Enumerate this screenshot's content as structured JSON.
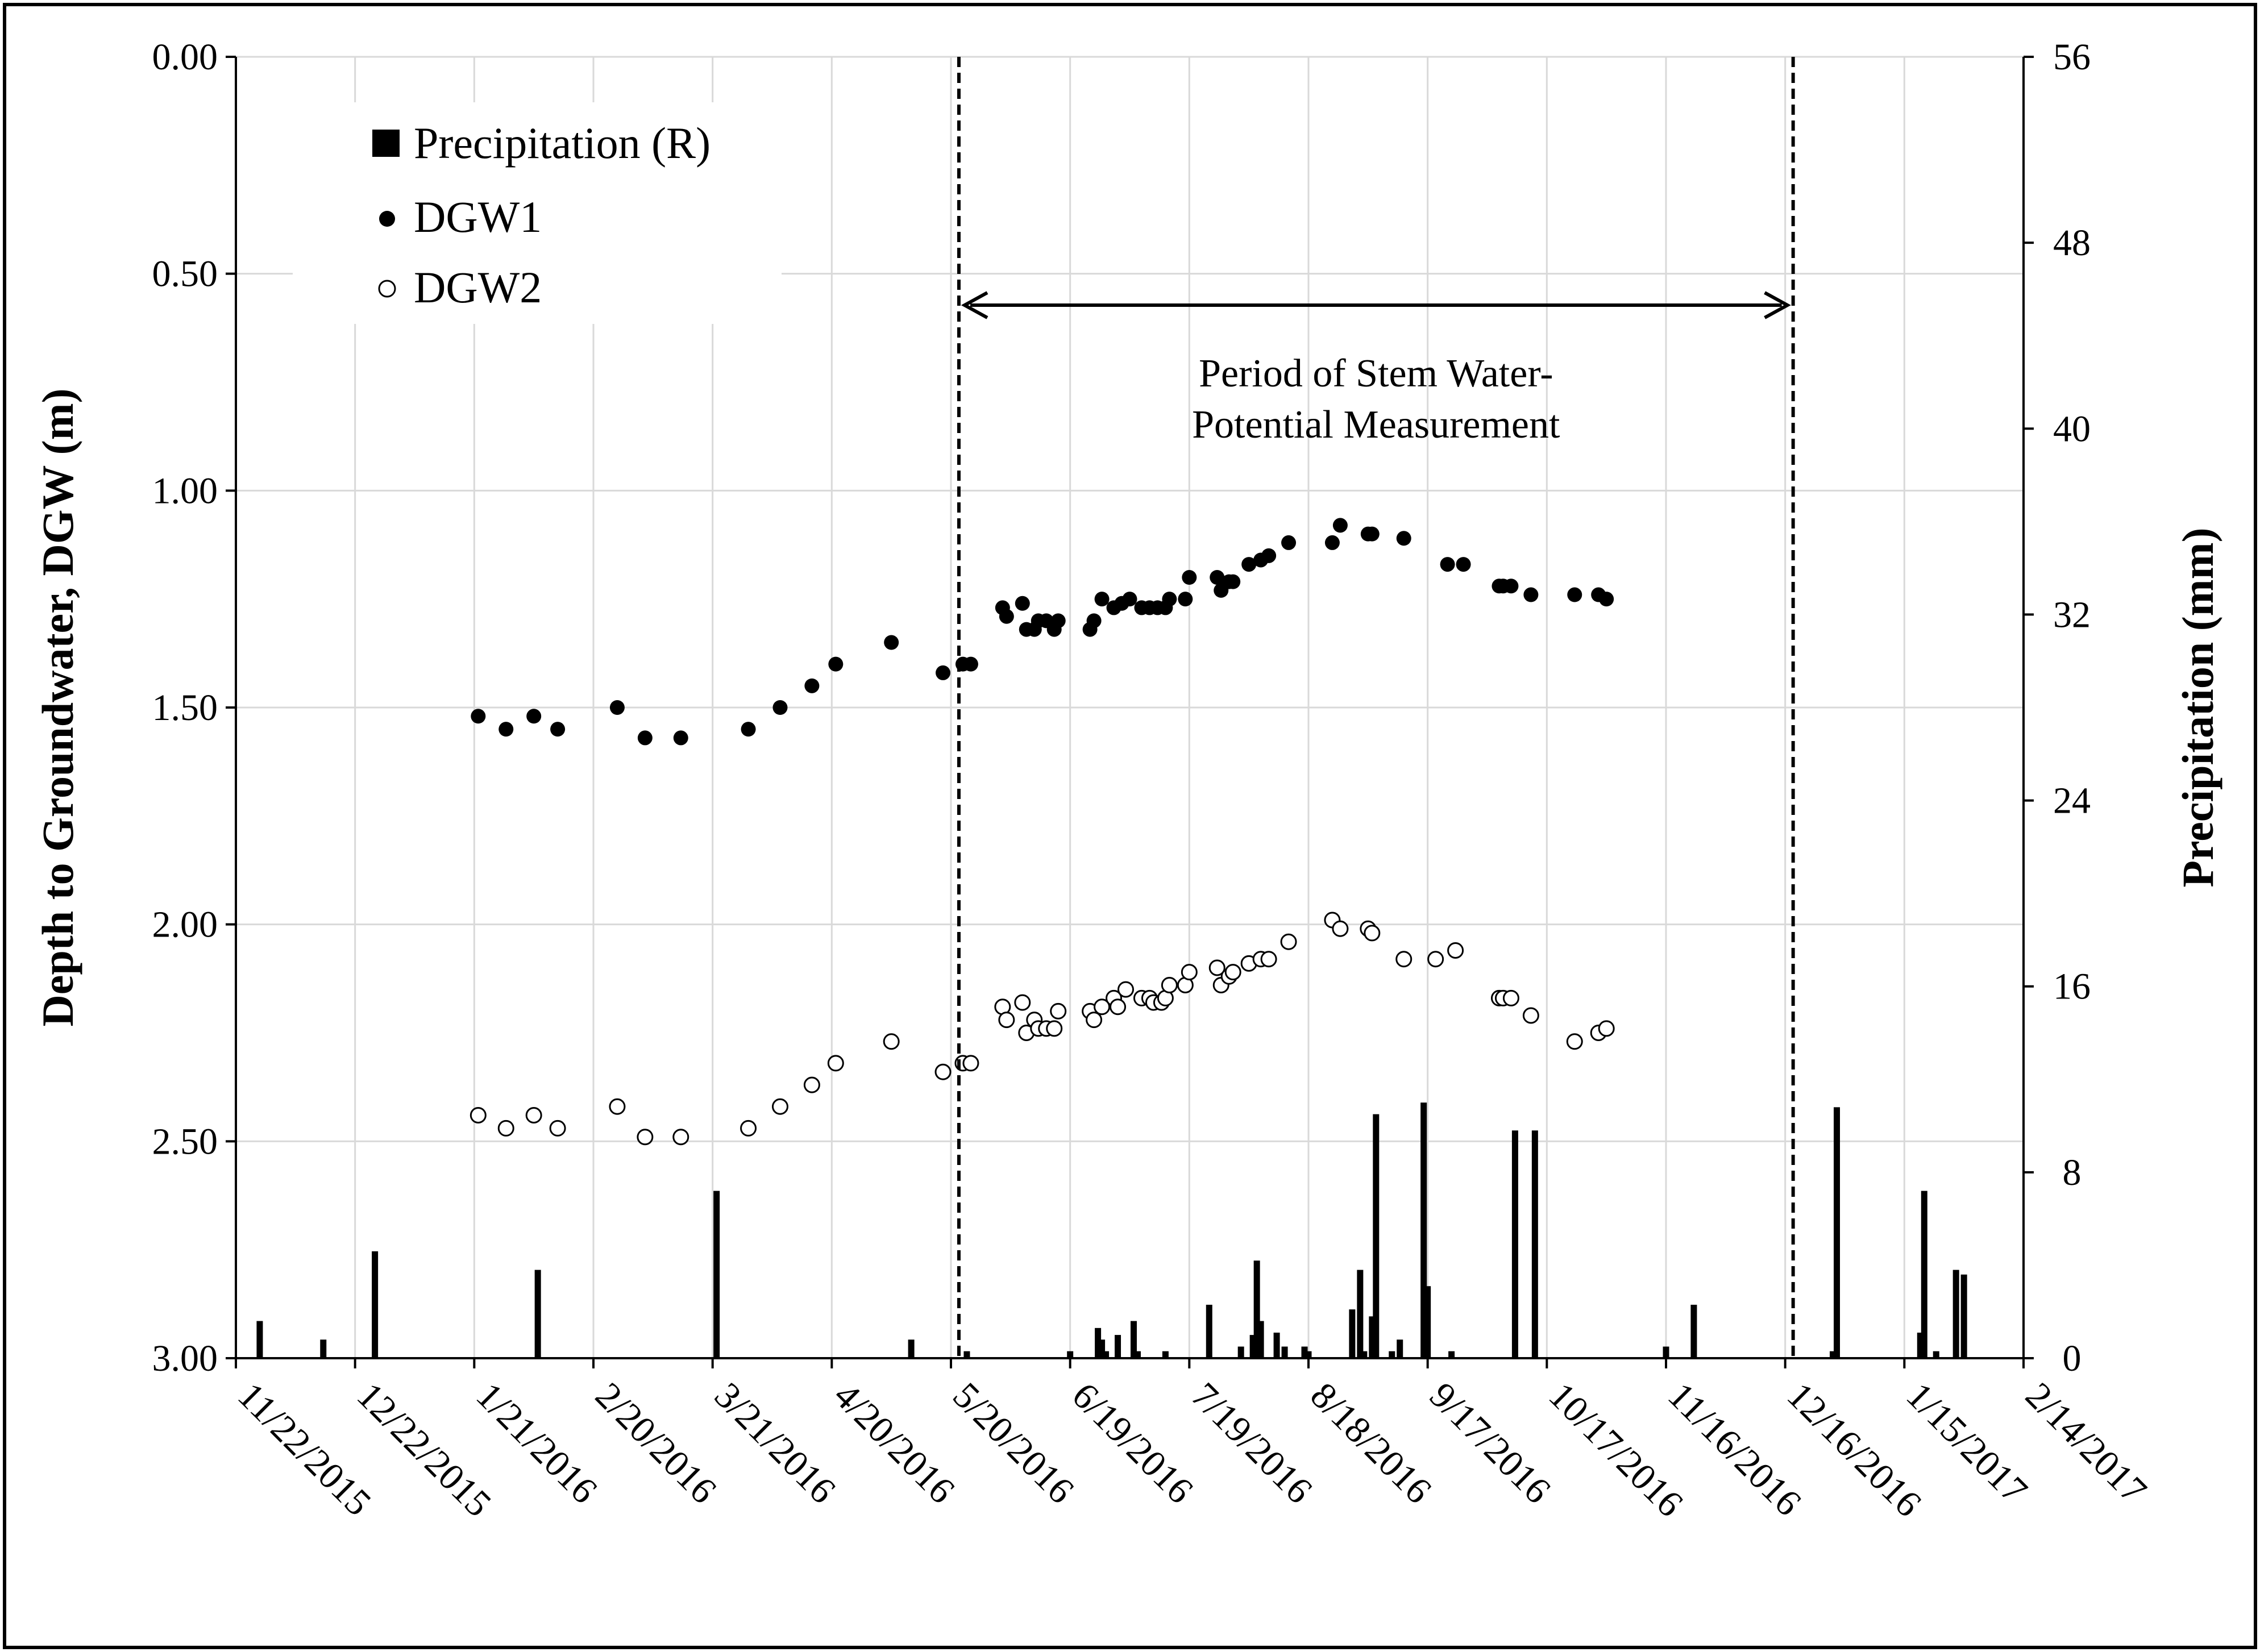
{
  "chart_data": {
    "type": "scatter",
    "title": "",
    "xlabel": "",
    "ylabel": "Depth to Groundwater, DGW (m)",
    "y2label": "Precipitation (mm)",
    "colors": {
      "frame": "#000000",
      "grid": "#d9d9d9",
      "marker": "#000000"
    },
    "x_range_days": [
      0,
      450
    ],
    "x_ticks": [
      {
        "day": 0,
        "label": "11/22/2015"
      },
      {
        "day": 30,
        "label": "12/22/2015"
      },
      {
        "day": 60,
        "label": "1/21/2016"
      },
      {
        "day": 90,
        "label": "2/20/2016"
      },
      {
        "day": 120,
        "label": "3/21/2016"
      },
      {
        "day": 150,
        "label": "4/20/2016"
      },
      {
        "day": 180,
        "label": "5/20/2016"
      },
      {
        "day": 210,
        "label": "6/19/2016"
      },
      {
        "day": 240,
        "label": "7/19/2016"
      },
      {
        "day": 270,
        "label": "8/18/2016"
      },
      {
        "day": 300,
        "label": "9/17/2016"
      },
      {
        "day": 330,
        "label": "10/17/2016"
      },
      {
        "day": 360,
        "label": "11/16/2016"
      },
      {
        "day": 390,
        "label": "12/16/2016"
      },
      {
        "day": 420,
        "label": "1/15/2017"
      },
      {
        "day": 450,
        "label": "2/14/2017"
      }
    ],
    "y_left": {
      "min": 0.0,
      "max": 3.0,
      "inverted": true,
      "ticks": [
        "0.00",
        "0.50",
        "1.00",
        "1.50",
        "2.00",
        "2.50",
        "3.00"
      ]
    },
    "y_right": {
      "min": 0,
      "max": 56,
      "ticks": [
        "0",
        "8",
        "16",
        "24",
        "32",
        "40",
        "48",
        "56"
      ]
    },
    "legend": {
      "position": "top-left",
      "entries": [
        "Precipitation (R)",
        "DGW1",
        "DGW2"
      ]
    },
    "annotation": {
      "line1": "Period of Stem Water-",
      "line2": "Potential Measurement",
      "start_day": 182,
      "end_day": 392
    },
    "series": [
      {
        "name": "DGW1",
        "marker": "filled-circle",
        "points": [
          [
            61,
            1.52
          ],
          [
            68,
            1.55
          ],
          [
            75,
            1.52
          ],
          [
            81,
            1.55
          ],
          [
            96,
            1.5
          ],
          [
            103,
            1.57
          ],
          [
            112,
            1.57
          ],
          [
            129,
            1.55
          ],
          [
            137,
            1.5
          ],
          [
            145,
            1.45
          ],
          [
            151,
            1.4
          ],
          [
            165,
            1.35
          ],
          [
            178,
            1.42
          ],
          [
            183,
            1.4
          ],
          [
            185,
            1.4
          ],
          [
            193,
            1.27
          ],
          [
            194,
            1.29
          ],
          [
            198,
            1.26
          ],
          [
            199,
            1.32
          ],
          [
            201,
            1.32
          ],
          [
            202,
            1.3
          ],
          [
            204,
            1.3
          ],
          [
            206,
            1.32
          ],
          [
            207,
            1.3
          ],
          [
            215,
            1.32
          ],
          [
            216,
            1.3
          ],
          [
            218,
            1.25
          ],
          [
            221,
            1.27
          ],
          [
            223,
            1.26
          ],
          [
            225,
            1.25
          ],
          [
            228,
            1.27
          ],
          [
            230,
            1.27
          ],
          [
            232,
            1.27
          ],
          [
            234,
            1.27
          ],
          [
            235,
            1.25
          ],
          [
            239,
            1.25
          ],
          [
            240,
            1.2
          ],
          [
            247,
            1.2
          ],
          [
            248,
            1.23
          ],
          [
            250,
            1.21
          ],
          [
            251,
            1.21
          ],
          [
            255,
            1.17
          ],
          [
            258,
            1.16
          ],
          [
            260,
            1.15
          ],
          [
            265,
            1.12
          ],
          [
            276,
            1.12
          ],
          [
            278,
            1.08
          ],
          [
            285,
            1.1
          ],
          [
            286,
            1.1
          ],
          [
            294,
            1.11
          ],
          [
            305,
            1.17
          ],
          [
            309,
            1.17
          ],
          [
            318,
            1.22
          ],
          [
            319,
            1.22
          ],
          [
            321,
            1.22
          ],
          [
            326,
            1.24
          ],
          [
            337,
            1.24
          ],
          [
            343,
            1.24
          ],
          [
            345,
            1.25
          ]
        ]
      },
      {
        "name": "DGW2",
        "marker": "open-circle",
        "points": [
          [
            61,
            2.44
          ],
          [
            68,
            2.47
          ],
          [
            75,
            2.44
          ],
          [
            81,
            2.47
          ],
          [
            96,
            2.42
          ],
          [
            103,
            2.49
          ],
          [
            112,
            2.49
          ],
          [
            129,
            2.47
          ],
          [
            137,
            2.42
          ],
          [
            145,
            2.37
          ],
          [
            151,
            2.32
          ],
          [
            165,
            2.27
          ],
          [
            178,
            2.34
          ],
          [
            183,
            2.32
          ],
          [
            185,
            2.32
          ],
          [
            193,
            2.19
          ],
          [
            194,
            2.22
          ],
          [
            198,
            2.18
          ],
          [
            199,
            2.25
          ],
          [
            201,
            2.22
          ],
          [
            202,
            2.24
          ],
          [
            204,
            2.24
          ],
          [
            206,
            2.24
          ],
          [
            207,
            2.2
          ],
          [
            215,
            2.2
          ],
          [
            216,
            2.22
          ],
          [
            218,
            2.19
          ],
          [
            221,
            2.17
          ],
          [
            222,
            2.19
          ],
          [
            224,
            2.15
          ],
          [
            228,
            2.17
          ],
          [
            230,
            2.17
          ],
          [
            231,
            2.18
          ],
          [
            233,
            2.18
          ],
          [
            234,
            2.17
          ],
          [
            235,
            2.14
          ],
          [
            239,
            2.14
          ],
          [
            240,
            2.11
          ],
          [
            247,
            2.1
          ],
          [
            248,
            2.14
          ],
          [
            250,
            2.12
          ],
          [
            251,
            2.11
          ],
          [
            255,
            2.09
          ],
          [
            258,
            2.08
          ],
          [
            260,
            2.08
          ],
          [
            265,
            2.04
          ],
          [
            276,
            1.99
          ],
          [
            278,
            2.01
          ],
          [
            285,
            2.01
          ],
          [
            286,
            2.02
          ],
          [
            294,
            2.08
          ],
          [
            302,
            2.08
          ],
          [
            307,
            2.06
          ],
          [
            318,
            2.17
          ],
          [
            319,
            2.17
          ],
          [
            321,
            2.17
          ],
          [
            326,
            2.21
          ],
          [
            337,
            2.27
          ],
          [
            343,
            2.25
          ],
          [
            345,
            2.24
          ]
        ]
      },
      {
        "name": "Precipitation (R)",
        "marker": "bar",
        "axis": "right",
        "points": [
          [
            6,
            1.6
          ],
          [
            22,
            0.8
          ],
          [
            35,
            4.6
          ],
          [
            76,
            3.8
          ],
          [
            121,
            7.2
          ],
          [
            170,
            0.8
          ],
          [
            184,
            0.3
          ],
          [
            210,
            0.3
          ],
          [
            217,
            1.3
          ],
          [
            218,
            0.8
          ],
          [
            219,
            0.3
          ],
          [
            222,
            1.0
          ],
          [
            226,
            1.6
          ],
          [
            227,
            0.3
          ],
          [
            234,
            0.3
          ],
          [
            245,
            2.3
          ],
          [
            253,
            0.5
          ],
          [
            257,
            4.2
          ],
          [
            256,
            1.0
          ],
          [
            258,
            1.6
          ],
          [
            262,
            1.1
          ],
          [
            264,
            0.5
          ],
          [
            269,
            0.5
          ],
          [
            270,
            0.3
          ],
          [
            281,
            2.1
          ],
          [
            283,
            3.8
          ],
          [
            284,
            0.3
          ],
          [
            286,
            1.8
          ],
          [
            287,
            10.5
          ],
          [
            291,
            0.3
          ],
          [
            293,
            0.8
          ],
          [
            299,
            11.0
          ],
          [
            300,
            3.1
          ],
          [
            306,
            0.3
          ],
          [
            322,
            9.8
          ],
          [
            327,
            9.8
          ],
          [
            360,
            0.5
          ],
          [
            367,
            2.3
          ],
          [
            402,
            0.3
          ],
          [
            403,
            10.8
          ],
          [
            424,
            1.1
          ],
          [
            425,
            7.2
          ],
          [
            428,
            0.3
          ],
          [
            433,
            3.8
          ],
          [
            435,
            3.6
          ]
        ]
      }
    ]
  }
}
